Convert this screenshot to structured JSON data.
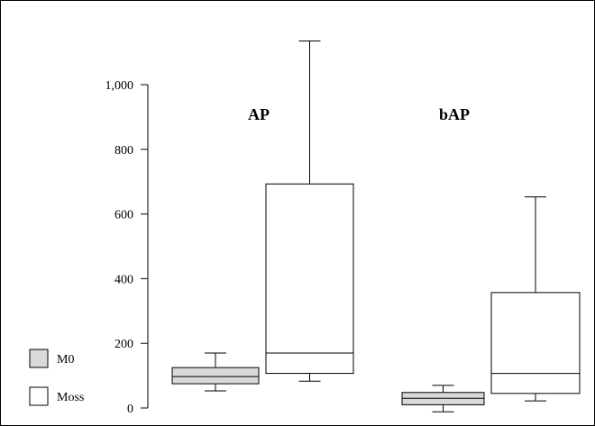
{
  "chart_data": {
    "type": "boxplot",
    "title": "",
    "xlabel": "",
    "ylabel": "",
    "ylim": [
      -20,
      1150
    ],
    "yticks": [
      0,
      200,
      400,
      600,
      800,
      1000
    ],
    "ytick_labels": [
      "0",
      "200",
      "400",
      "600",
      "800",
      "1,000"
    ],
    "grid": false,
    "legend_position": "bottom-left",
    "groups": [
      "AP",
      "bAP"
    ],
    "series": [
      {
        "name": "M0",
        "color": "#d9d9d9",
        "boxes": [
          {
            "group": "AP",
            "whisker_low": 53,
            "q1": 75,
            "median": 97,
            "q3": 125,
            "whisker_high": 170
          },
          {
            "group": "bAP",
            "whisker_low": -12,
            "q1": 10,
            "median": 30,
            "q3": 48,
            "whisker_high": 70
          }
        ]
      },
      {
        "name": "Moss",
        "color": "#ffffff",
        "boxes": [
          {
            "group": "AP",
            "whisker_low": 83,
            "q1": 107,
            "median": 170,
            "q3": 693,
            "whisker_high": 1135
          },
          {
            "group": "bAP",
            "whisker_low": 22,
            "q1": 45,
            "median": 107,
            "q3": 357,
            "whisker_high": 653
          }
        ]
      }
    ]
  }
}
